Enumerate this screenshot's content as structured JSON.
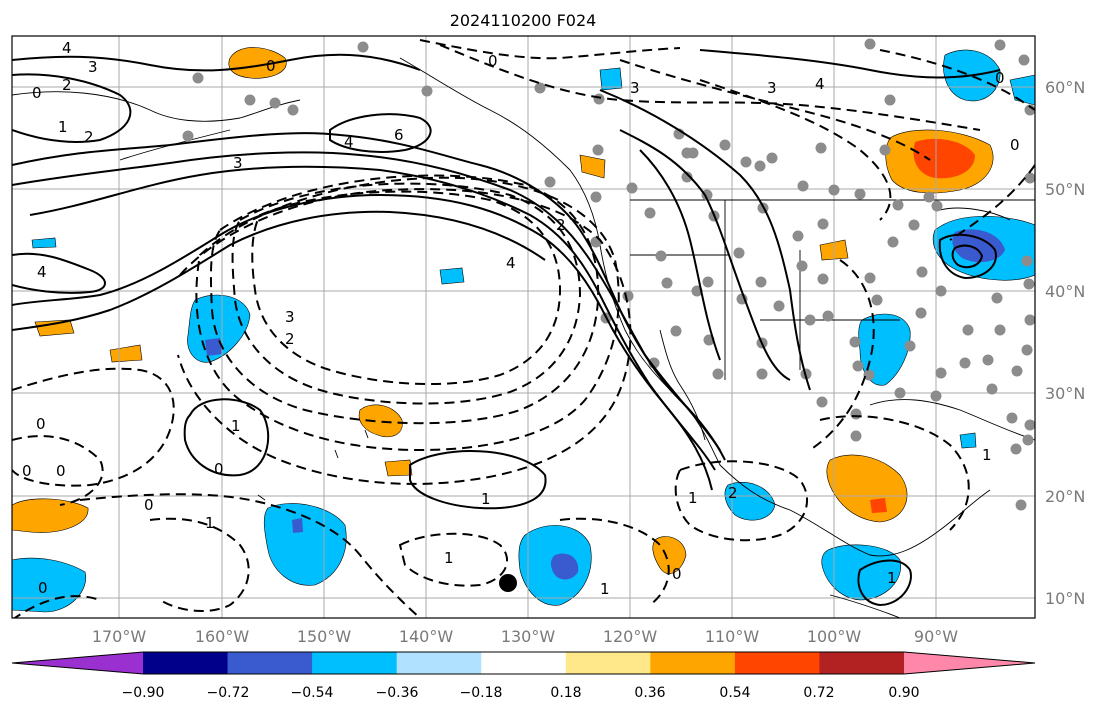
{
  "title": "2024110200 F024",
  "lon_labels": [
    "170°W",
    "160°W",
    "150°W",
    "140°W",
    "130°W",
    "120°W",
    "110°W",
    "100°W",
    "90°W"
  ],
  "lat_labels": [
    "60°N",
    "50°N",
    "40°N",
    "30°N",
    "20°N",
    "10°N"
  ],
  "colorbar": {
    "colors": [
      "#9b30d0",
      "#00008b",
      "#3a5bd0",
      "#00bfff",
      "#b0e2ff",
      "#ffffff",
      "#ffe88a",
      "#ffa500",
      "#ff4500",
      "#b22222",
      "#ff88aa"
    ],
    "tick_labels": [
      "−0.90",
      "−0.72",
      "−0.54",
      "−0.36",
      "−0.18",
      "0.18",
      "0.36",
      "0.54",
      "0.72",
      "0.90"
    ]
  },
  "contour_labels": [
    "4",
    "3",
    "0",
    "2",
    "1",
    "0",
    "6",
    "4",
    "3",
    "0",
    "3",
    "4",
    "3",
    "4",
    "4",
    "3",
    "2",
    "1",
    "0",
    "0",
    "0",
    "0",
    "1",
    "0",
    "1",
    "1",
    "2",
    "1",
    "0",
    "1",
    "0",
    "0",
    "1",
    "1",
    "0",
    "2",
    "2"
  ],
  "colors": {
    "warm": "#ffa500",
    "hot": "#ff4500",
    "cool": "#00bfff",
    "cold": "#3a5bd0",
    "coldest": "#9b30d0",
    "dot": "#8c8c8c",
    "grid": "#a9a9a9"
  }
}
